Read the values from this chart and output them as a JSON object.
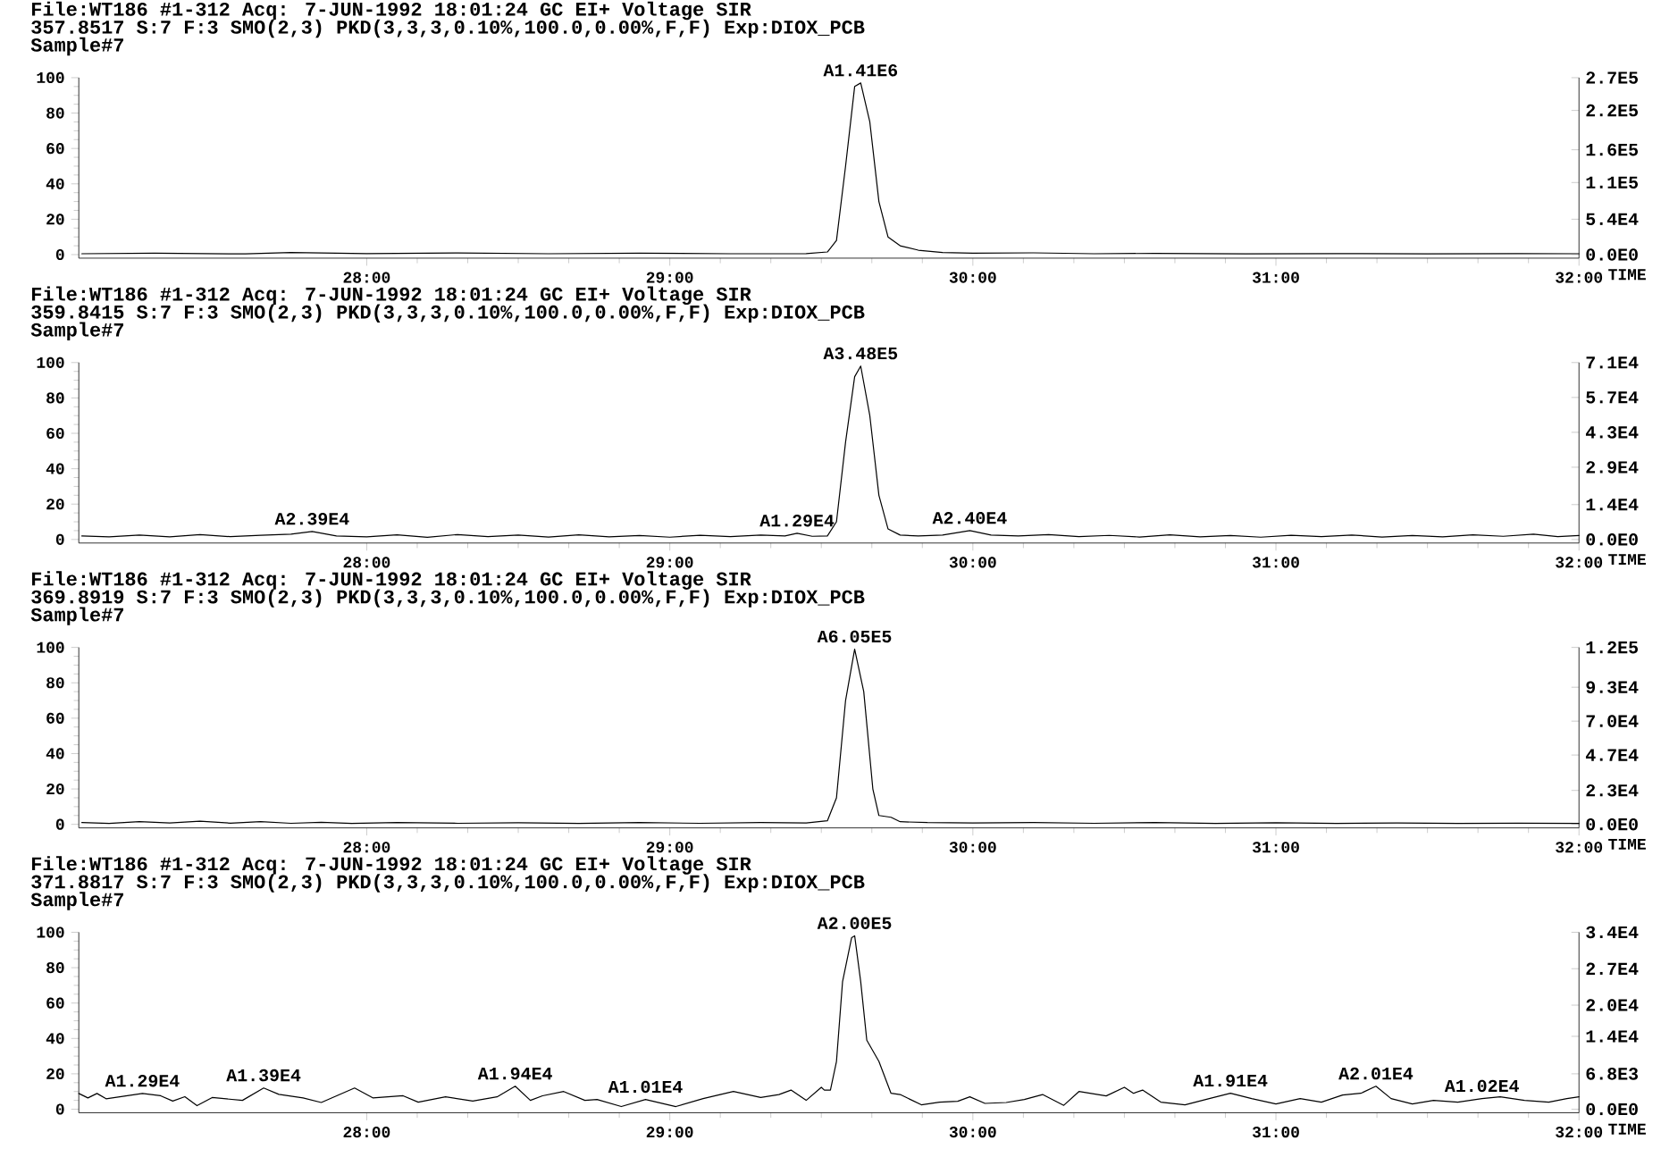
{
  "chart_data": [
    {
      "type": "line",
      "title": "File:WT186 #1-312 Acq: 7-JUN-1992 18:01:24 GC EI+ Voltage SIR",
      "subtitle": "357.8517 S:7 F:3 SMO(2,3) PKD(3,3,3,0.10%,100.0,0.00%,F,F) Exp:DIOX_PCB",
      "xlabel": "TIME",
      "annotations": [
        "Sample#7",
        {
          "text": "A1.41E6",
          "x": 29.63,
          "y": 97
        }
      ],
      "series": [
        {
          "color": "#000000",
          "x": [
            27.06,
            27.3,
            27.6,
            27.75,
            28.0,
            28.3,
            28.6,
            28.9,
            29.2,
            29.45,
            29.52,
            29.55,
            29.58,
            29.61,
            29.63,
            29.66,
            29.69,
            29.72,
            29.76,
            29.82,
            29.9,
            30.0,
            30.2,
            30.4,
            30.6,
            30.9,
            31.2,
            31.5,
            31.8,
            32.0
          ],
          "values": [
            0.5,
            0.8,
            0.4,
            1.2,
            0.6,
            0.9,
            0.5,
            0.8,
            0.5,
            0.6,
            1.5,
            8,
            50,
            95,
            97,
            75,
            30,
            10,
            5,
            2.5,
            1.2,
            0.8,
            1,
            0.5,
            0.7,
            0.4,
            0.6,
            0.4,
            0.6,
            0.5
          ]
        }
      ],
      "xlim": [
        27.05,
        32.0
      ],
      "ylim": [
        -2,
        100
      ],
      "xticks": [
        {
          "value": 28,
          "label": "28:00"
        },
        {
          "value": 29,
          "label": "29:00"
        },
        {
          "value": 30,
          "label": "30:00"
        },
        {
          "value": 31,
          "label": "31:00"
        },
        {
          "value": 32,
          "label": "32:00"
        }
      ],
      "yticks": [
        0,
        20,
        40,
        60,
        80,
        100
      ],
      "y2lim": [
        -5400,
        270000
      ],
      "y2ticks": [
        {
          "value": 0,
          "label": "0.0E0"
        },
        {
          "value": 54000,
          "label": "5.4E4"
        },
        {
          "value": 110000,
          "label": "1.1E5"
        },
        {
          "value": 160000,
          "label": "1.6E5"
        },
        {
          "value": 220000,
          "label": "2.2E5"
        },
        {
          "value": 270000,
          "label": "2.7E5"
        }
      ]
    },
    {
      "type": "line",
      "title": "File:WT186 #1-312 Acq: 7-JUN-1992 18:01:24 GC EI+ Voltage SIR",
      "subtitle": "359.8415 S:7 F:3 SMO(2,3) PKD(3,3,3,0.10%,100.0,0.00%,F,F) Exp:DIOX_PCB",
      "xlabel": "TIME",
      "annotations": [
        "Sample#7",
        {
          "text": "A2.39E4",
          "x": 27.82,
          "y": 4.5
        },
        {
          "text": "A1.29E4",
          "x": 29.42,
          "y": 3.5
        },
        {
          "text": "A3.48E5",
          "x": 29.63,
          "y": 98
        },
        {
          "text": "A2.40E4",
          "x": 29.99,
          "y": 5
        }
      ],
      "series": [
        {
          "color": "#000000",
          "x": [
            27.06,
            27.15,
            27.25,
            27.35,
            27.45,
            27.55,
            27.65,
            27.75,
            27.82,
            27.9,
            28.0,
            28.1,
            28.2,
            28.3,
            28.4,
            28.5,
            28.6,
            28.7,
            28.8,
            28.9,
            29.0,
            29.1,
            29.2,
            29.3,
            29.38,
            29.42,
            29.47,
            29.52,
            29.55,
            29.58,
            29.61,
            29.63,
            29.66,
            29.69,
            29.72,
            29.76,
            29.82,
            29.9,
            29.99,
            30.06,
            30.15,
            30.25,
            30.35,
            30.45,
            30.55,
            30.65,
            30.75,
            30.85,
            30.95,
            31.05,
            31.15,
            31.25,
            31.35,
            31.45,
            31.55,
            31.65,
            31.75,
            31.85,
            31.93,
            32.0
          ],
          "values": [
            2,
            1.5,
            2.5,
            1.5,
            2.8,
            1.6,
            2.4,
            3,
            4.5,
            2,
            1.5,
            2.6,
            1.2,
            2.8,
            1.6,
            2.5,
            1.4,
            2.6,
            1.5,
            2.2,
            1.3,
            2.4,
            1.6,
            2.5,
            2,
            3.5,
            1.8,
            2,
            10,
            55,
            92,
            98,
            70,
            25,
            6,
            2.5,
            2,
            2.5,
            5,
            2.5,
            2,
            2.8,
            1.6,
            2.3,
            1.4,
            2.6,
            1.5,
            2.2,
            1.3,
            2.4,
            1.6,
            2.5,
            1.4,
            2.2,
            1.5,
            2.6,
            1.8,
            3,
            1.6,
            2.2
          ]
        }
      ],
      "xlim": [
        27.05,
        32.0
      ],
      "ylim": [
        -2,
        100
      ],
      "xticks": [
        {
          "value": 28,
          "label": "28:00"
        },
        {
          "value": 29,
          "label": "29:00"
        },
        {
          "value": 30,
          "label": "30:00"
        },
        {
          "value": 31,
          "label": "31:00"
        },
        {
          "value": 32,
          "label": "32:00"
        }
      ],
      "yticks": [
        0,
        20,
        40,
        60,
        80,
        100
      ],
      "y2lim": [
        -1420,
        71000
      ],
      "y2ticks": [
        {
          "value": 0,
          "label": "0.0E0"
        },
        {
          "value": 14000,
          "label": "1.4E4"
        },
        {
          "value": 29000,
          "label": "2.9E4"
        },
        {
          "value": 43000,
          "label": "4.3E4"
        },
        {
          "value": 57000,
          "label": "5.7E4"
        },
        {
          "value": 71000,
          "label": "7.1E4"
        }
      ]
    },
    {
      "type": "line",
      "title": "File:WT186 #1-312 Acq: 7-JUN-1992 18:01:24 GC EI+ Voltage SIR",
      "subtitle": "369.8919 S:7 F:3 SMO(2,3) PKD(3,3,3,0.10%,100.0,0.00%,F,F) Exp:DIOX_PCB",
      "xlabel": "TIME",
      "annotations": [
        "Sample#7",
        {
          "text": "A6.05E5",
          "x": 29.61,
          "y": 99
        }
      ],
      "series": [
        {
          "color": "#000000",
          "x": [
            27.06,
            27.15,
            27.25,
            27.35,
            27.45,
            27.55,
            27.65,
            27.75,
            27.85,
            27.95,
            28.1,
            28.3,
            28.5,
            28.7,
            28.9,
            29.1,
            29.3,
            29.45,
            29.52,
            29.55,
            29.58,
            29.61,
            29.64,
            29.67,
            29.69,
            29.73,
            29.76,
            29.85,
            30.0,
            30.2,
            30.4,
            30.6,
            30.8,
            31.0,
            31.2,
            31.4,
            31.6,
            31.8,
            32.0
          ],
          "values": [
            1,
            0.5,
            1.5,
            0.8,
            1.8,
            0.7,
            1.5,
            0.6,
            1.2,
            0.5,
            1,
            0.6,
            0.9,
            0.5,
            1,
            0.6,
            1,
            0.8,
            2,
            15,
            70,
            99,
            75,
            20,
            5,
            4,
            1.5,
            1,
            0.8,
            1,
            0.6,
            1,
            0.5,
            0.9,
            0.5,
            0.8,
            0.5,
            0.7,
            0.5
          ]
        }
      ],
      "xlim": [
        27.05,
        32.0
      ],
      "ylim": [
        -2,
        100
      ],
      "xticks": [
        {
          "value": 28,
          "label": "28:00"
        },
        {
          "value": 29,
          "label": "29:00"
        },
        {
          "value": 30,
          "label": "30:00"
        },
        {
          "value": 31,
          "label": "31:00"
        },
        {
          "value": 32,
          "label": "32:00"
        }
      ],
      "yticks": [
        0,
        20,
        40,
        60,
        80,
        100
      ],
      "y2lim": [
        -2400,
        120000
      ],
      "y2ticks": [
        {
          "value": 0,
          "label": "0.0E0"
        },
        {
          "value": 23000,
          "label": "2.3E4"
        },
        {
          "value": 47000,
          "label": "4.7E4"
        },
        {
          "value": 70000,
          "label": "7.0E4"
        },
        {
          "value": 93000,
          "label": "9.3E4"
        },
        {
          "value": 120000,
          "label": "1.2E5"
        }
      ]
    },
    {
      "type": "line",
      "title": "File:WT186 #1-312 Acq: 7-JUN-1992 18:01:24 GC EI+ Voltage SIR",
      "subtitle": "371.8817 S:7 F:3 SMO(2,3) PKD(3,3,3,0.10%,100.0,0.00%,F,F) Exp:DIOX_PCB",
      "xlabel": "TIME",
      "annotations": [
        "Sample#7",
        {
          "text": "A1.29E4",
          "x": 27.26,
          "y": 8.9
        },
        {
          "text": "A1.39E4",
          "x": 27.66,
          "y": 12
        },
        {
          "text": "A1.94E4",
          "x": 28.49,
          "y": 13
        },
        {
          "text": "A1.01E4",
          "x": 28.92,
          "y": 5.5
        },
        {
          "text": "A2.00E5",
          "x": 29.61,
          "y": 98
        },
        {
          "text": "A1.91E4",
          "x": 30.85,
          "y": 9
        },
        {
          "text": "A2.01E4",
          "x": 31.33,
          "y": 13
        },
        {
          "text": "A1.02E4",
          "x": 31.68,
          "y": 6
        }
      ],
      "series": [
        {
          "color": "#000000",
          "x": [
            27.05,
            27.08,
            27.11,
            27.14,
            27.26,
            27.32,
            27.36,
            27.4,
            27.44,
            27.49,
            27.59,
            27.66,
            27.71,
            27.79,
            27.85,
            27.96,
            28.02,
            28.12,
            28.17,
            28.26,
            28.35,
            28.43,
            28.49,
            28.54,
            28.58,
            28.65,
            28.72,
            28.76,
            28.84,
            28.92,
            29.02,
            29.11,
            29.21,
            29.3,
            29.36,
            29.4,
            29.45,
            29.5,
            29.51,
            29.53,
            29.55,
            29.57,
            29.6,
            29.61,
            29.63,
            29.65,
            29.69,
            29.73,
            29.76,
            29.83,
            29.89,
            29.95,
            29.99,
            30.04,
            30.11,
            30.17,
            30.23,
            30.3,
            30.35,
            30.44,
            30.5,
            30.53,
            30.56,
            30.62,
            30.7,
            30.78,
            30.85,
            30.92,
            31.0,
            31.08,
            31.15,
            31.22,
            31.28,
            31.33,
            31.38,
            31.45,
            31.52,
            31.6,
            31.68,
            31.74,
            31.82,
            31.9,
            31.96,
            32.0
          ],
          "values": [
            8.9,
            6.4,
            8.9,
            5.9,
            8.9,
            7.6,
            4.6,
            7.1,
            2,
            6.6,
            5,
            12,
            8.4,
            6.4,
            3.8,
            12,
            6.4,
            7.6,
            4,
            7,
            4.6,
            7,
            13,
            5,
            7.6,
            10,
            5,
            5.5,
            1.5,
            5.5,
            1.5,
            6,
            10,
            6.6,
            8.3,
            10.8,
            5,
            12.4,
            10.8,
            10.8,
            27,
            72,
            97,
            98,
            72,
            39,
            27,
            9,
            8.3,
            2.5,
            4,
            4.5,
            7,
            3.3,
            3.8,
            5.5,
            8.3,
            2.2,
            10,
            7.5,
            12.4,
            9,
            10.8,
            4,
            2.5,
            6,
            9,
            6,
            3,
            6,
            4,
            8,
            9,
            13,
            6,
            3,
            5,
            4,
            6,
            7,
            5,
            4,
            6,
            7
          ]
        }
      ],
      "xlim": [
        27.05,
        32.0
      ],
      "ylim": [
        -2,
        100
      ],
      "xticks": [
        {
          "value": 28,
          "label": "28:00"
        },
        {
          "value": 29,
          "label": "29:00"
        },
        {
          "value": 30,
          "label": "30:00"
        },
        {
          "value": 31,
          "label": "31:00"
        },
        {
          "value": 32,
          "label": "32:00"
        }
      ],
      "yticks": [
        0,
        20,
        40,
        60,
        80,
        100
      ],
      "y2lim": [
        -680,
        34000
      ],
      "y2ticks": [
        {
          "value": 0,
          "label": "0.0E0"
        },
        {
          "value": 6800,
          "label": "6.8E3"
        },
        {
          "value": 14000,
          "label": "1.4E4"
        },
        {
          "value": 20000,
          "label": "2.0E4"
        },
        {
          "value": 27000,
          "label": "2.7E4"
        },
        {
          "value": 34000,
          "label": "3.4E4"
        }
      ]
    }
  ]
}
